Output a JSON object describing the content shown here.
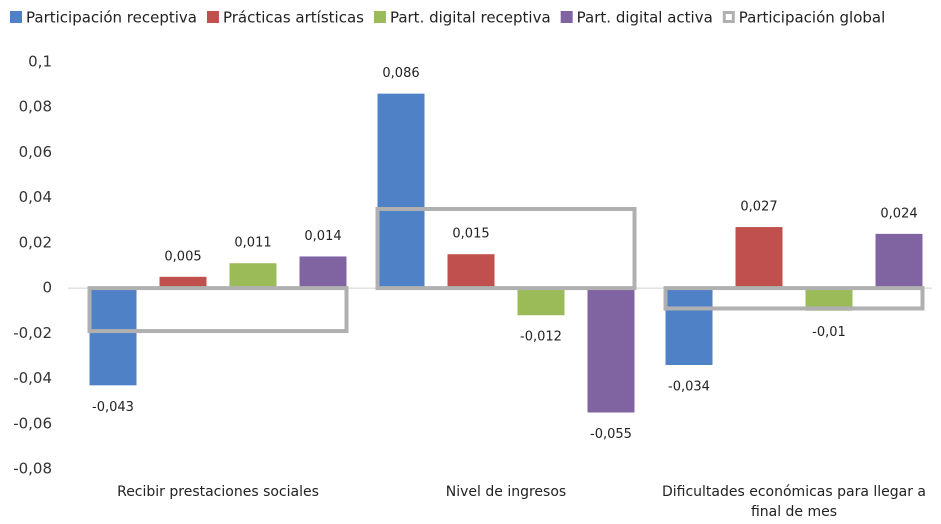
{
  "chart_data": {
    "type": "bar",
    "categories": [
      "Recibir prestaciones sociales",
      "Nivel de ingresos",
      "Dificultades económicas para llegar a final de mes"
    ],
    "series": [
      {
        "name": "Participación receptiva",
        "color": "#4f81c6",
        "values": [
          -0.043,
          0.086,
          -0.034
        ],
        "value_labels": [
          "-0,043",
          "0,086",
          "-0,034"
        ]
      },
      {
        "name": "Prácticas artísticas",
        "color": "#c0504d",
        "values": [
          0.005,
          0.015,
          0.027
        ],
        "value_labels": [
          "0,005",
          "0,015",
          "0,027"
        ]
      },
      {
        "name": "Part. digital receptiva",
        "color": "#9bbb59",
        "values": [
          0.011,
          -0.012,
          -0.01
        ],
        "value_labels": [
          "0,011",
          "-0,012",
          "-0,01"
        ]
      },
      {
        "name": "Part. digital activa",
        "color": "#8064a2",
        "values": [
          0.014,
          -0.055,
          0.024
        ],
        "value_labels": [
          "0,014",
          "-0,055",
          "0,024"
        ]
      },
      {
        "name": "Participación global",
        "color": "#b0b0b0",
        "outline": true,
        "values": [
          -0.019,
          0.035,
          -0.009
        ]
      }
    ],
    "ylim": [
      -0.08,
      0.1
    ],
    "yticks": [
      {
        "value": -0.08,
        "label": "-0,08"
      },
      {
        "value": -0.06,
        "label": "-0,06"
      },
      {
        "value": -0.04,
        "label": "-0,04"
      },
      {
        "value": -0.02,
        "label": "-0,02"
      },
      0,
      {
        "value": 0.02,
        "label": "0,02"
      },
      {
        "value": 0.04,
        "label": "0,04"
      },
      {
        "value": 0.06,
        "label": "0,06"
      },
      {
        "value": 0.08,
        "label": "0,08"
      },
      {
        "value": 0.1,
        "label": "0,1"
      }
    ],
    "legend": "top"
  }
}
